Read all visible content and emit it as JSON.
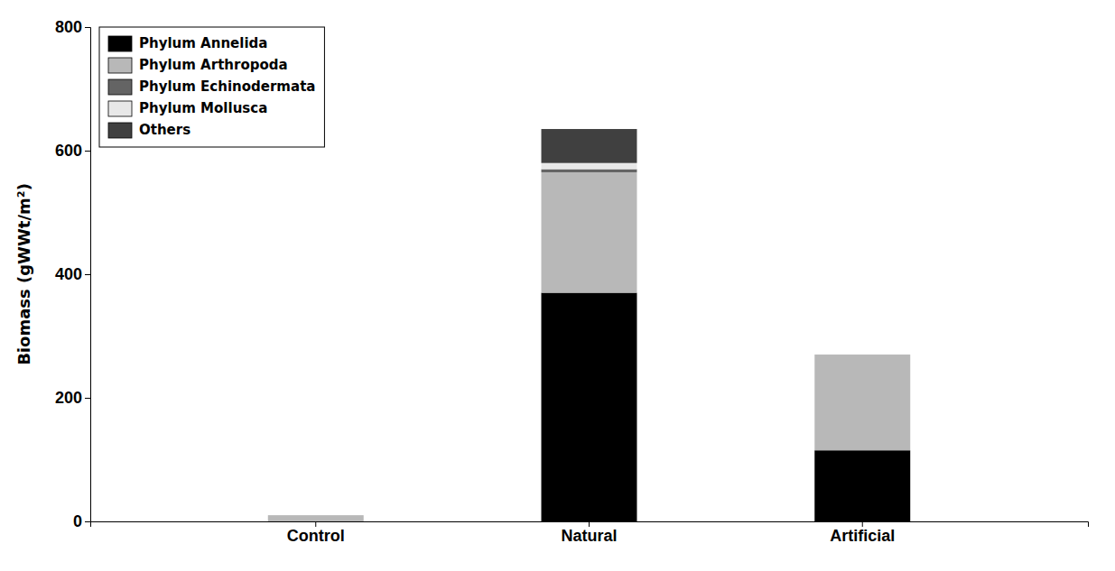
{
  "chart_data": {
    "type": "bar",
    "stacked": true,
    "categories": [
      "Control",
      "Natural",
      "Artificial"
    ],
    "series": [
      {
        "name": "Phylum Annelida",
        "color": "#000000",
        "values": [
          0,
          370,
          115
        ]
      },
      {
        "name": "Phylum Arthropoda",
        "color": "#b8b8b8",
        "values": [
          10,
          195,
          155
        ]
      },
      {
        "name": "Phylum Echinodermata",
        "color": "#646464",
        "values": [
          0,
          5,
          0
        ]
      },
      {
        "name": "Phylum Mollusca",
        "color": "#e8e8e8",
        "values": [
          0,
          10,
          0
        ]
      },
      {
        "name": "Others",
        "color": "#404040",
        "values": [
          0,
          55,
          0
        ]
      }
    ],
    "ylabel": "Biomass (gWWt/m²)",
    "ylim": [
      0,
      800
    ],
    "yticks": [
      0,
      200,
      400,
      600,
      800
    ],
    "legend": "upper left",
    "grid": false
  }
}
